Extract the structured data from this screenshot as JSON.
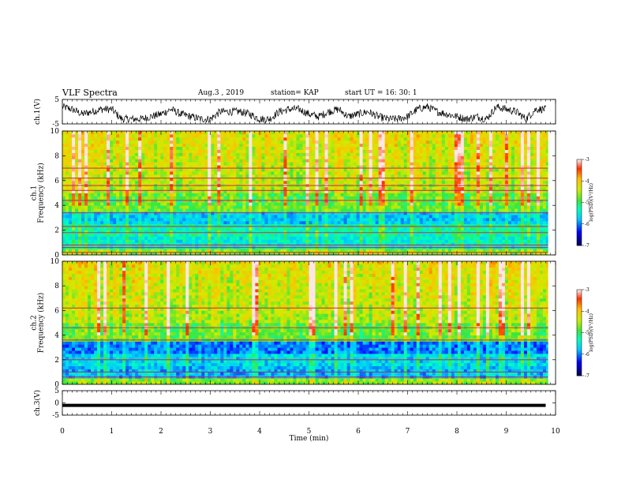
{
  "header": {
    "title": "VLF Spectra",
    "date": "Aug.3 , 2019",
    "station": "station= KAP",
    "start": "start UT = 16: 30: 1"
  },
  "chart_data": [
    {
      "type": "line",
      "ylabel": "ch.1(V)",
      "ylim": [
        -5,
        5
      ],
      "yticks": [
        "5",
        "-5"
      ],
      "xlim": [
        0,
        10
      ],
      "x": [
        0,
        0.2,
        0.4,
        0.6,
        0.8,
        1.0,
        1.2,
        1.4,
        1.6,
        1.8,
        2.0,
        2.2,
        2.4,
        2.6,
        2.8,
        3.0,
        3.2,
        3.4,
        3.6,
        3.8,
        4.0,
        4.2,
        4.4,
        4.6,
        4.8,
        5.0,
        5.2,
        5.4,
        5.6,
        5.8,
        6.0,
        6.2,
        6.4,
        6.6,
        6.8,
        7.0,
        7.2,
        7.4,
        7.6,
        7.8,
        8.0,
        8.2,
        8.4,
        8.6,
        8.8,
        9.0,
        9.2,
        9.4,
        9.6,
        9.8
      ],
      "y": [
        2,
        1,
        -1,
        0,
        1,
        1,
        -3,
        -3,
        -3,
        -2,
        -1,
        1,
        -1,
        -2,
        -3,
        -3,
        0,
        0,
        0,
        -1,
        -3,
        -3,
        0,
        1,
        1,
        -1,
        -2,
        0,
        1,
        -2,
        -1,
        0,
        -2,
        -3,
        -3,
        -2,
        1,
        2,
        0,
        -1,
        -2,
        -3,
        -2,
        -3,
        2,
        1,
        0,
        -3,
        1,
        1
      ]
    },
    {
      "type": "heatmap",
      "ylabel": "ch.1\nFrequency (kHz)",
      "ylim": [
        0,
        10
      ],
      "yticks": [
        "0",
        "2",
        "4",
        "6",
        "8",
        "10"
      ],
      "colorbar": {
        "label": "log(PSD)(V²/Hz)",
        "range": [
          -7,
          -3
        ],
        "ticks": [
          "-3",
          "-4",
          "-5",
          "-6",
          "-7"
        ]
      },
      "horizontal_lines_khz": [
        0.2,
        0.6,
        0.8,
        1.8,
        2.3,
        3.4,
        4.4,
        5.2,
        5.6,
        6.2,
        7.0
      ]
    },
    {
      "type": "heatmap",
      "ylabel": "ch.2\nFrequency (kHz)",
      "ylim": [
        0,
        10
      ],
      "yticks": [
        "0",
        "2",
        "4",
        "6",
        "8",
        "10"
      ],
      "colorbar": {
        "label": "log(PSD)(V²/Hz)",
        "range": [
          -7,
          -3
        ],
        "ticks": [
          "-3",
          "-4",
          "-5",
          "-6",
          "-7"
        ]
      },
      "horizontal_lines_khz": [
        0.6,
        1.0,
        2.0,
        3.6,
        4.6,
        6.2
      ]
    },
    {
      "type": "line",
      "ylabel": "ch.3(V)",
      "ylim": [
        -5,
        5
      ],
      "yticks": [
        "5",
        "0",
        "-5"
      ],
      "x": [
        0,
        9.8
      ],
      "y": [
        -1,
        -1
      ]
    }
  ],
  "xaxis": {
    "label": "Time (min)",
    "ticks": [
      "0",
      "1",
      "2",
      "3",
      "4",
      "5",
      "6",
      "7",
      "8",
      "9",
      "10"
    ],
    "range": [
      0,
      10
    ]
  }
}
